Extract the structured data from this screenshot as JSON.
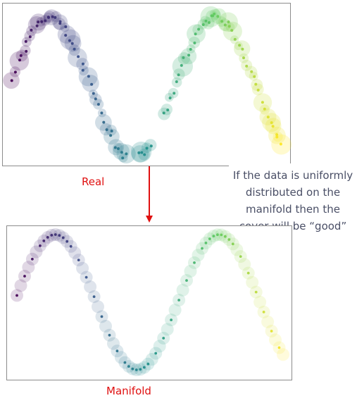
{
  "captions": {
    "real": "Real",
    "manifold": "Manifold"
  },
  "note": {
    "lines": [
      "If the data is uniformly",
      "distributed on the",
      "manifold then the",
      "cover will be “good”"
    ]
  },
  "colors": {
    "caption": "#e01010",
    "arrow": "#e01010",
    "frame": "#8c8c8c",
    "note_text": "#4a4f66",
    "colormap": [
      "#440154",
      "#3b528b",
      "#21918c",
      "#5ec962",
      "#fde725"
    ]
  }
}
